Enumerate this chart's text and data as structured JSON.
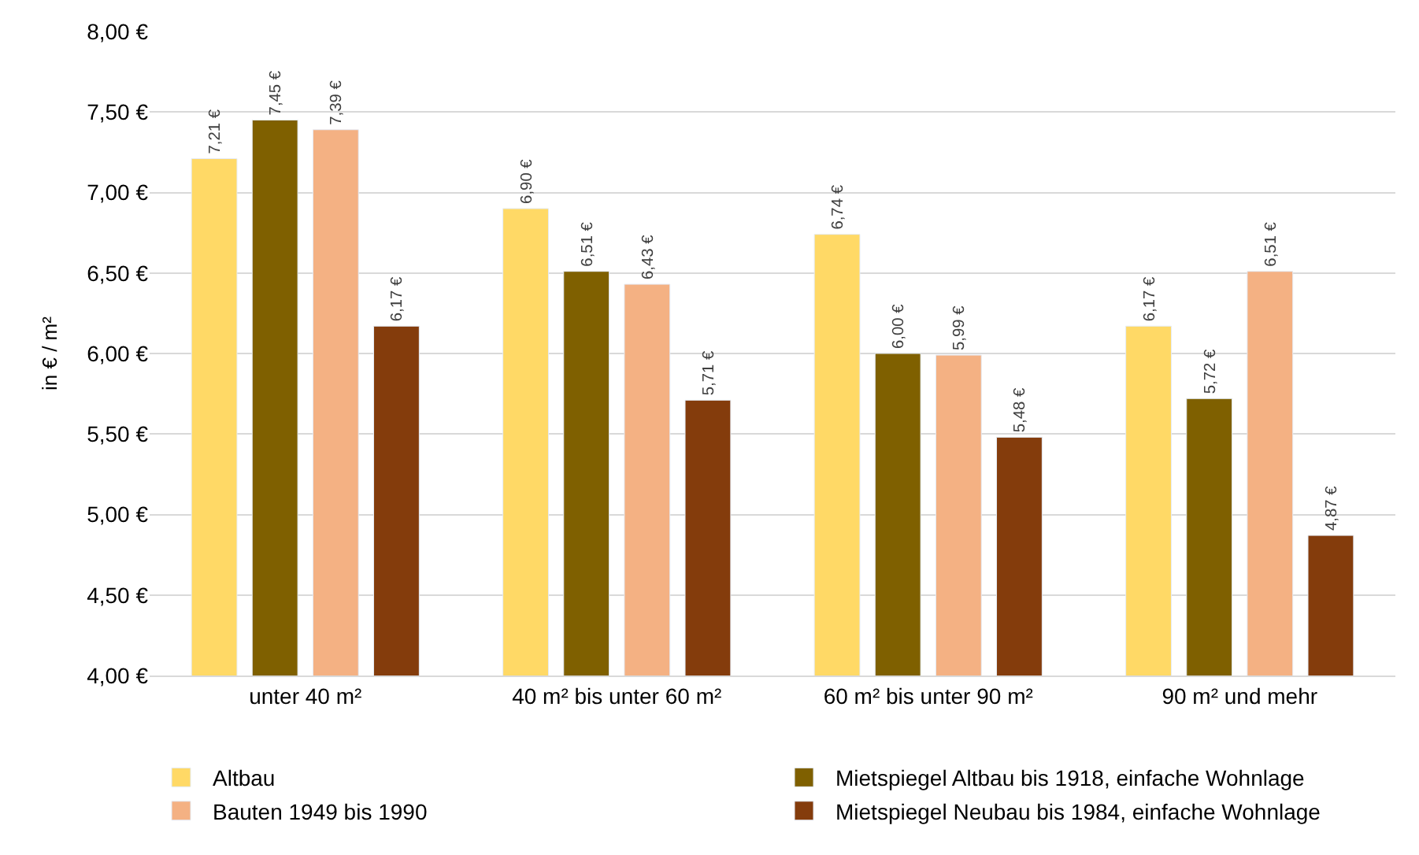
{
  "chart_data": {
    "type": "bar",
    "ylabel": "in € / m²",
    "categories": [
      "unter 40 m²",
      "40 m² bis unter 60 m²",
      "60 m² bis unter 90 m²",
      "90 m² und mehr"
    ],
    "series": [
      {
        "name": "Altbau",
        "color": "#ffd966",
        "values": [
          7.21,
          6.9,
          6.74,
          6.17
        ],
        "value_labels": [
          "7,21 €",
          "6,90 €",
          "6,74 €",
          "6,17 €"
        ]
      },
      {
        "name": "Mietspiegel Altbau bis 1918, einfache Wohnlage",
        "color": "#7f6000",
        "values": [
          7.45,
          6.51,
          6.0,
          5.72
        ],
        "value_labels": [
          "7,45 €",
          "6,51 €",
          "6,00 €",
          "5,72 €"
        ]
      },
      {
        "name": "Bauten 1949 bis 1990",
        "color": "#f4b183",
        "values": [
          7.39,
          6.43,
          5.99,
          6.51
        ],
        "value_labels": [
          "7,39 €",
          "6,43 €",
          "5,99 €",
          "6,51 €"
        ]
      },
      {
        "name": "Mietspiegel Neubau bis 1984, einfache Wohnlage",
        "color": "#843c0c",
        "values": [
          6.17,
          5.71,
          5.48,
          4.87
        ],
        "value_labels": [
          "6,17 €",
          "5,71 €",
          "5,48 €",
          "4,87 €"
        ]
      }
    ],
    "ylim": [
      4,
      8
    ],
    "yticks": [
      {
        "value": 4,
        "label": "4,00 €"
      },
      {
        "value": 4.5,
        "label": "4,50 €"
      },
      {
        "value": 5,
        "label": "5,00 €"
      },
      {
        "value": 5.5,
        "label": "5,50 €"
      },
      {
        "value": 6,
        "label": "6,00 €"
      },
      {
        "value": 6.5,
        "label": "6,50 €"
      },
      {
        "value": 7,
        "label": "7,00 €"
      },
      {
        "value": 7.5,
        "label": "7,50 €"
      },
      {
        "value": 8,
        "label": "8,00 €"
      }
    ],
    "grid": "y",
    "legend": "bottom"
  }
}
